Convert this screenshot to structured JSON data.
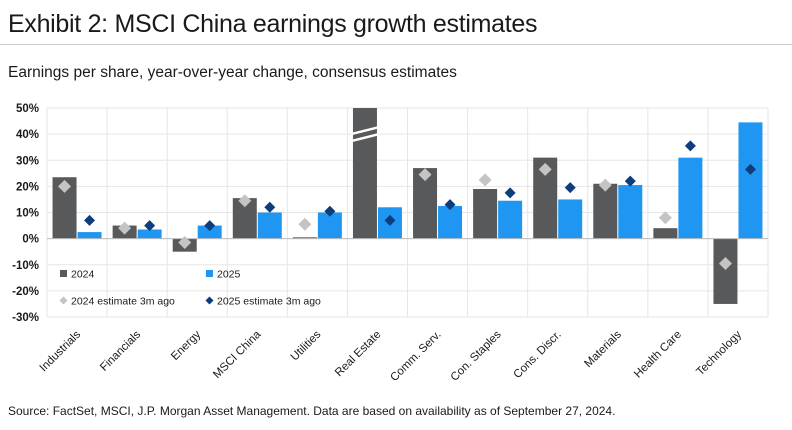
{
  "header": {
    "title": "Exhibit 2: MSCI China earnings growth estimates",
    "subtitle": "Earnings per share, year-over-year change, consensus estimates"
  },
  "footer": {
    "source": "Source: FactSet, MSCI, J.P. Morgan Asset Management. Data are based on availability as of September 27, 2024."
  },
  "colors": {
    "bar_2024": "#58595b",
    "bar_2025": "#1f97f2",
    "est_2024": "#c4c4c4",
    "est_2025": "#0d3d7a"
  },
  "chart_data": {
    "type": "bar",
    "categories": [
      "Industrials",
      "Financials",
      "Energy",
      "MSCI China",
      "Utilities",
      "Real Estate",
      "Comm. Serv.",
      "Con. Staples",
      "Cons. Discr.",
      "Materials",
      "Health Care",
      "Technology"
    ],
    "series": [
      {
        "name": "2024",
        "kind": "bar",
        "values": [
          23.5,
          5,
          -5,
          15.5,
          0.5,
          50,
          27,
          19,
          31,
          21,
          4,
          -25
        ]
      },
      {
        "name": "2025",
        "kind": "bar",
        "values": [
          2.5,
          3.5,
          5,
          10,
          10,
          12,
          12.5,
          14.5,
          15,
          20.5,
          31,
          44.5
        ]
      },
      {
        "name": "2024 estimate 3m ago",
        "kind": "marker",
        "values": [
          20,
          4,
          -1.5,
          14.5,
          5.5,
          null,
          24.5,
          22.5,
          26.5,
          20.5,
          8,
          -9.5
        ]
      },
      {
        "name": "2025 estimate 3m ago",
        "kind": "marker",
        "values": [
          7,
          5,
          5,
          12,
          10.5,
          7,
          13,
          17.5,
          19.5,
          22,
          35.5,
          26.5
        ]
      }
    ],
    "axis_break": {
      "category": "Real Estate",
      "series": "2024"
    },
    "yticks": [
      50,
      40,
      30,
      20,
      10,
      0,
      -10,
      -20,
      -30
    ],
    "ytick_labels": [
      "50%",
      "40%",
      "30%",
      "20%",
      "10%",
      "0%",
      "-10%",
      "-20%",
      "-30%"
    ],
    "ylim": [
      -30,
      50
    ],
    "legend": [
      "2024",
      "2025",
      "2024 estimate 3m ago",
      "2025 estimate 3m ago"
    ],
    "legend_position": "bottom-left",
    "xlabel": "",
    "ylabel": ""
  }
}
